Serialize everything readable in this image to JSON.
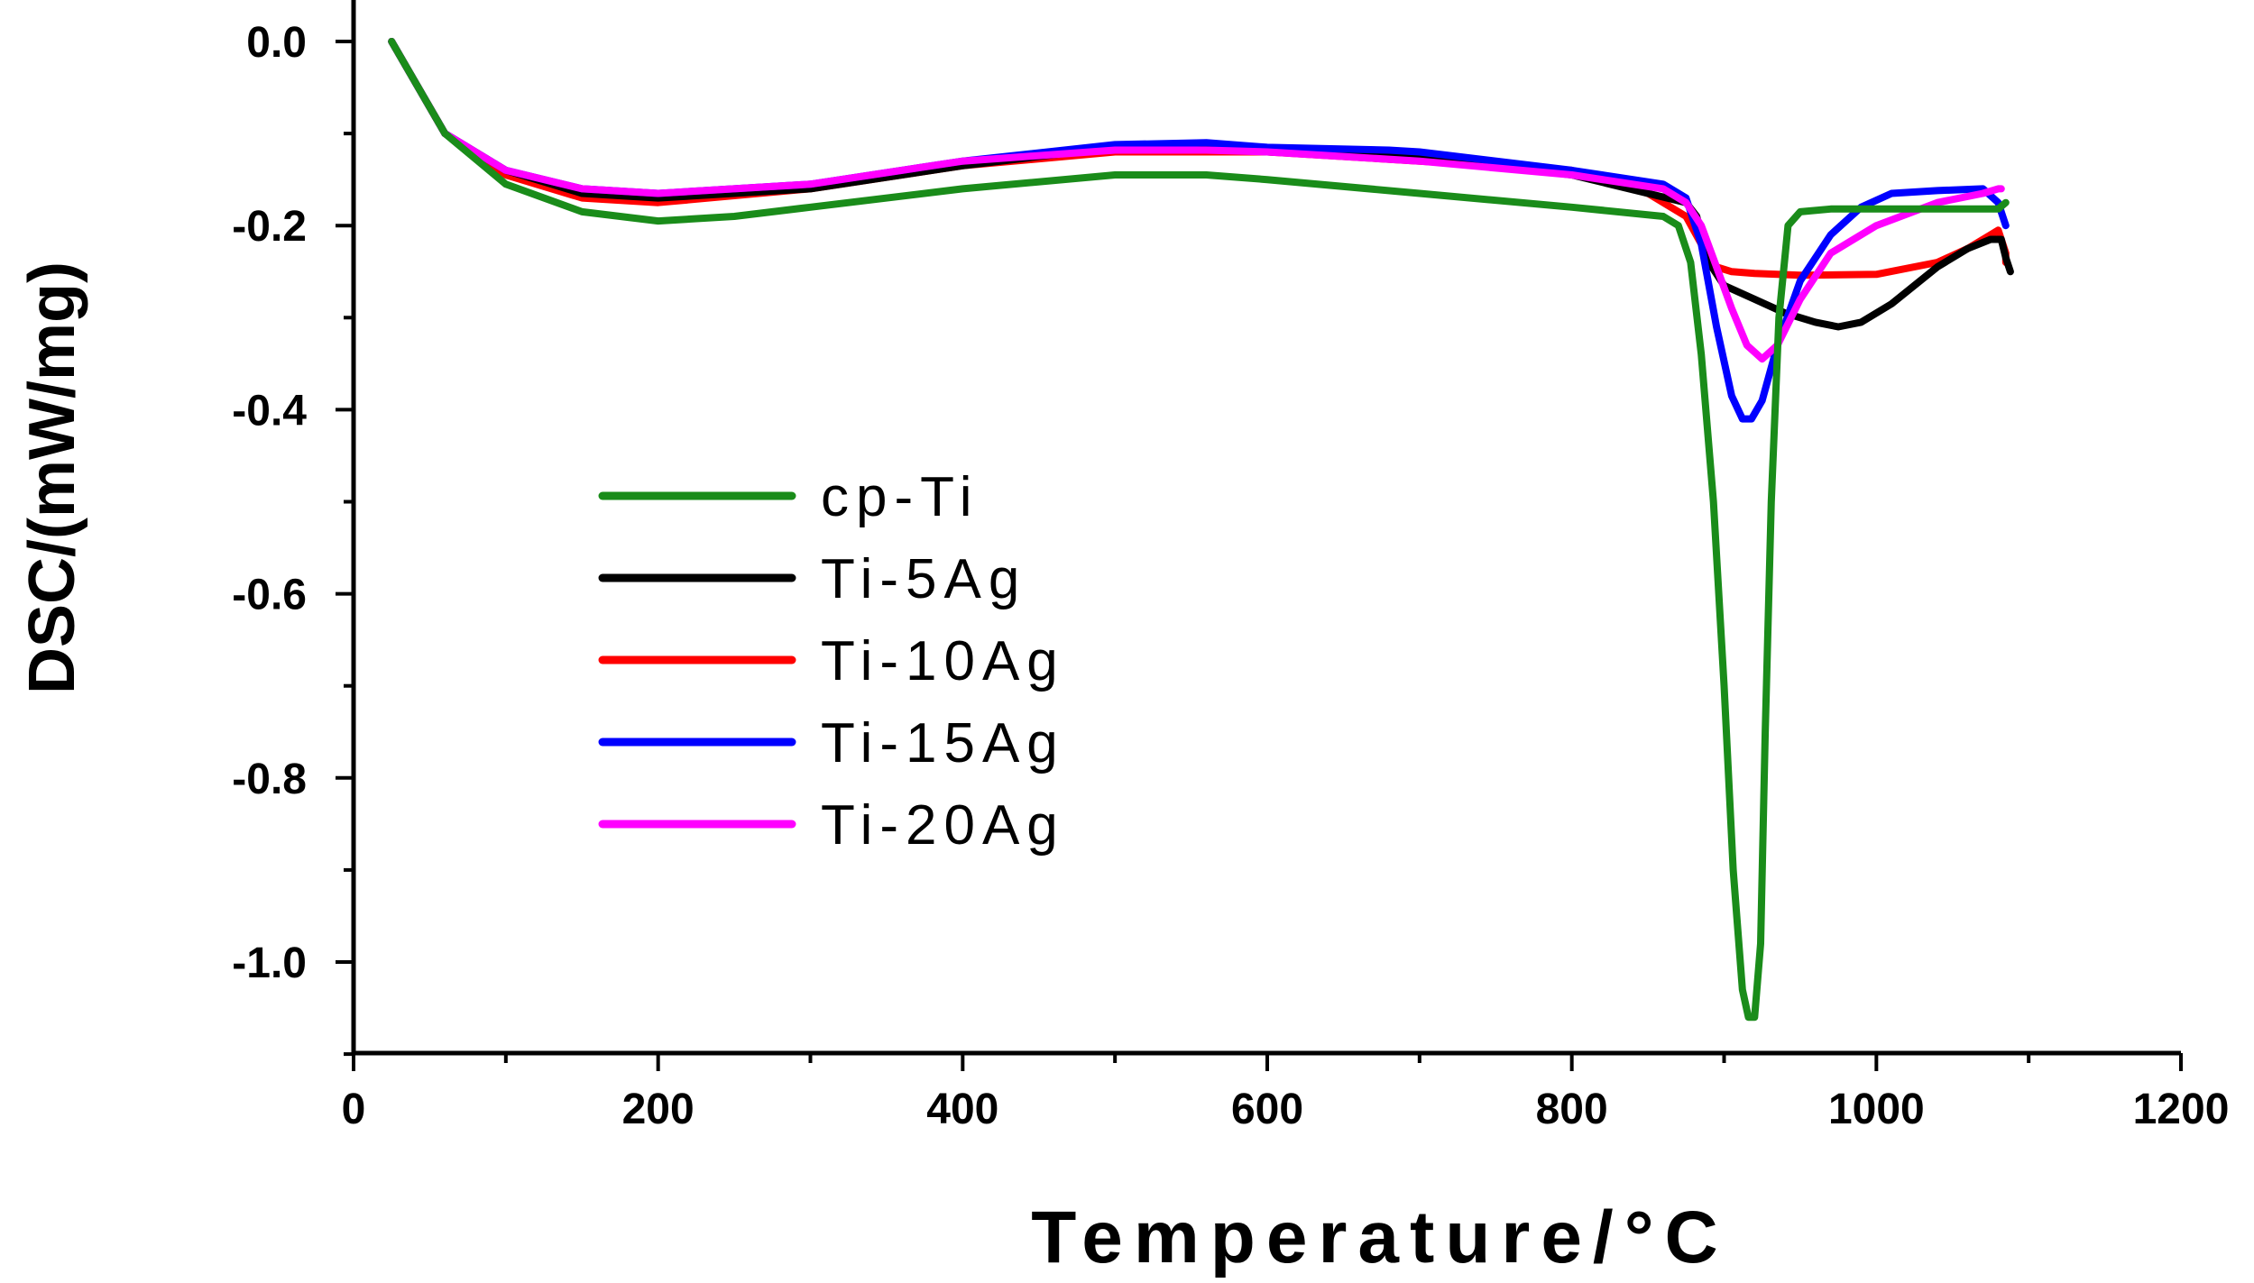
{
  "chart_data": {
    "type": "line",
    "title": "",
    "xlabel": "Temperature/°C",
    "ylabel": "DSC/(mW/mg)",
    "xlim": [
      0,
      1200
    ],
    "ylim": [
      -1.1,
      0.0
    ],
    "xticks": [
      0,
      200,
      400,
      600,
      800,
      1000,
      1200
    ],
    "xtick_labels": [
      "0",
      "200",
      "400",
      "600",
      "800",
      "1000",
      "1200"
    ],
    "yticks": [
      0.0,
      -0.2,
      -0.4,
      -0.6,
      -0.8,
      -1.0
    ],
    "ytick_labels": [
      "0.0",
      "-0.2",
      "-0.4",
      "-0.6",
      "-0.8",
      "-1.0"
    ],
    "grid": false,
    "legend_position": "center-left",
    "series": [
      {
        "name": "Ti-10Ag",
        "color": "#ff0000",
        "x": [
          25,
          60,
          100,
          150,
          200,
          300,
          400,
          500,
          560,
          600,
          700,
          800,
          850,
          875,
          885,
          895,
          905,
          920,
          950,
          1000,
          1040,
          1060,
          1075,
          1080,
          1085,
          1085
        ],
        "y": [
          0.0,
          -0.1,
          -0.145,
          -0.17,
          -0.175,
          -0.16,
          -0.135,
          -0.12,
          -0.12,
          -0.12,
          -0.13,
          -0.14,
          -0.165,
          -0.19,
          -0.22,
          -0.245,
          -0.25,
          -0.252,
          -0.254,
          -0.253,
          -0.24,
          -0.225,
          -0.21,
          -0.205,
          -0.23,
          -0.24
        ]
      },
      {
        "name": "Ti-5Ag",
        "color": "#000000",
        "x": [
          25,
          60,
          100,
          150,
          200,
          300,
          400,
          500,
          560,
          600,
          700,
          800,
          850,
          875,
          882,
          890,
          900,
          920,
          940,
          960,
          975,
          990,
          1010,
          1040,
          1060,
          1075,
          1082,
          1085,
          1088
        ],
        "y": [
          0.0,
          -0.1,
          -0.14,
          -0.165,
          -0.17,
          -0.16,
          -0.135,
          -0.115,
          -0.115,
          -0.12,
          -0.125,
          -0.145,
          -0.165,
          -0.175,
          -0.19,
          -0.24,
          -0.265,
          -0.28,
          -0.295,
          -0.305,
          -0.31,
          -0.305,
          -0.285,
          -0.245,
          -0.225,
          -0.215,
          -0.215,
          -0.235,
          -0.25
        ]
      },
      {
        "name": "Ti-15Ag",
        "color": "#0000ff",
        "x": [
          25,
          60,
          100,
          150,
          200,
          300,
          400,
          500,
          560,
          600,
          680,
          700,
          800,
          860,
          875,
          885,
          895,
          905,
          912,
          918,
          925,
          935,
          950,
          970,
          990,
          1010,
          1040,
          1070,
          1080,
          1085
        ],
        "y": [
          0.0,
          -0.1,
          -0.14,
          -0.16,
          -0.165,
          -0.155,
          -0.13,
          -0.112,
          -0.11,
          -0.115,
          -0.118,
          -0.12,
          -0.14,
          -0.155,
          -0.17,
          -0.22,
          -0.31,
          -0.385,
          -0.41,
          -0.41,
          -0.39,
          -0.33,
          -0.26,
          -0.21,
          -0.18,
          -0.165,
          -0.162,
          -0.16,
          -0.175,
          -0.2
        ]
      },
      {
        "name": "Ti-20Ag",
        "color": "#ff00ff",
        "x": [
          25,
          60,
          100,
          150,
          200,
          300,
          400,
          500,
          560,
          600,
          700,
          800,
          860,
          875,
          885,
          895,
          905,
          915,
          925,
          935,
          950,
          970,
          1000,
          1040,
          1070,
          1080,
          1082
        ],
        "y": [
          0.0,
          -0.1,
          -0.14,
          -0.16,
          -0.165,
          -0.155,
          -0.13,
          -0.118,
          -0.118,
          -0.12,
          -0.13,
          -0.145,
          -0.16,
          -0.175,
          -0.2,
          -0.245,
          -0.29,
          -0.33,
          -0.345,
          -0.33,
          -0.28,
          -0.23,
          -0.2,
          -0.175,
          -0.165,
          -0.16,
          -0.16
        ]
      },
      {
        "name": "cp-Ti",
        "color": "#1a8c1a",
        "x": [
          25,
          60,
          100,
          150,
          200,
          250,
          300,
          400,
          500,
          560,
          600,
          700,
          800,
          860,
          870,
          878,
          885,
          893,
          900,
          906,
          912,
          916,
          920,
          924,
          927,
          931,
          936,
          942,
          950,
          970,
          1000,
          1050,
          1080,
          1085
        ],
        "y": [
          0.0,
          -0.1,
          -0.155,
          -0.185,
          -0.195,
          -0.19,
          -0.18,
          -0.16,
          -0.145,
          -0.145,
          -0.15,
          -0.165,
          -0.18,
          -0.19,
          -0.2,
          -0.24,
          -0.34,
          -0.5,
          -0.7,
          -0.9,
          -1.03,
          -1.06,
          -1.06,
          -0.98,
          -0.75,
          -0.5,
          -0.3,
          -0.2,
          -0.185,
          -0.182,
          -0.182,
          -0.182,
          -0.182,
          -0.175
        ]
      }
    ],
    "legend_order": [
      "cp-Ti",
      "Ti-5Ag",
      "Ti-10Ag",
      "Ti-15Ag",
      "Ti-20Ag"
    ]
  }
}
